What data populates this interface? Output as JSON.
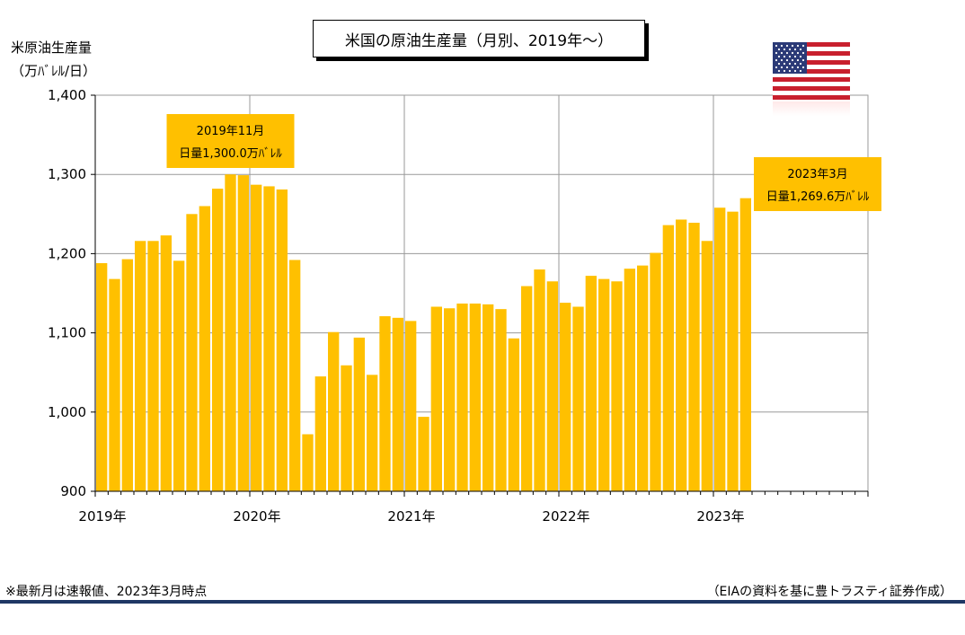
{
  "title": "米国の原油生産量（月別、2019年〜）",
  "ylabel_line1": "米原油生産量",
  "ylabel_line2": "（万ﾊﾞﾚﾙ/日）",
  "footer_note": "※最新月は速報値、2023年3月時点",
  "footer_source": "（EIAの資料を基に豊トラスティ証券作成）",
  "colors": {
    "bar": "#FFC000",
    "annotation_bg": "#FFC000",
    "grid": "#999999",
    "axis": "#000000",
    "footer_line": "#1F3764"
  },
  "flag_icon": "us-flag-icon",
  "chart_data": {
    "type": "bar",
    "ylabel": "米原油生産量（万ﾊﾞﾚﾙ/日）",
    "ylim": [
      900,
      1400
    ],
    "yticks": [
      "900",
      "1,000",
      "1,100",
      "1,200",
      "1,300",
      "1,400"
    ],
    "ytick_values": [
      900,
      1000,
      1100,
      1200,
      1300,
      1400
    ],
    "x_year_labels": [
      "2019年",
      "2020年",
      "2021年",
      "2022年",
      "2023年"
    ],
    "slots": 60,
    "grid": true,
    "categories": [
      "2019-01",
      "2019-02",
      "2019-03",
      "2019-04",
      "2019-05",
      "2019-06",
      "2019-07",
      "2019-08",
      "2019-09",
      "2019-10",
      "2019-11",
      "2019-12",
      "2020-01",
      "2020-02",
      "2020-03",
      "2020-04",
      "2020-05",
      "2020-06",
      "2020-07",
      "2020-08",
      "2020-09",
      "2020-10",
      "2020-11",
      "2020-12",
      "2021-01",
      "2021-02",
      "2021-03",
      "2021-04",
      "2021-05",
      "2021-06",
      "2021-07",
      "2021-08",
      "2021-09",
      "2021-10",
      "2021-11",
      "2021-12",
      "2022-01",
      "2022-02",
      "2022-03",
      "2022-04",
      "2022-05",
      "2022-06",
      "2022-07",
      "2022-08",
      "2022-09",
      "2022-10",
      "2022-11",
      "2022-12",
      "2023-01",
      "2023-02",
      "2023-03"
    ],
    "values": [
      1188,
      1168,
      1193,
      1216,
      1216,
      1223,
      1191,
      1250,
      1260,
      1282,
      1300,
      1299,
      1287,
      1285,
      1281,
      1192,
      972,
      1045,
      1101,
      1059,
      1094,
      1047,
      1121,
      1119,
      1115,
      994,
      1133,
      1131,
      1137,
      1137,
      1136,
      1130,
      1093,
      1159,
      1180,
      1165,
      1138,
      1133,
      1172,
      1168,
      1165,
      1181,
      1185,
      1201,
      1236,
      1243,
      1239,
      1216,
      1258,
      1253,
      1270
    ],
    "annotations": [
      {
        "line1": "2019年11月",
        "line2": "日量1,300.0万ﾊﾞﾚﾙ"
      },
      {
        "line1": "2023年3月",
        "line2": "日量1,269.6万ﾊﾞﾚﾙ"
      }
    ]
  }
}
